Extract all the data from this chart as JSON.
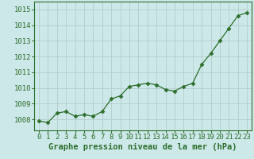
{
  "x": [
    0,
    1,
    2,
    3,
    4,
    5,
    6,
    7,
    8,
    9,
    10,
    11,
    12,
    13,
    14,
    15,
    16,
    17,
    18,
    19,
    20,
    21,
    22,
    23
  ],
  "y": [
    1007.9,
    1007.8,
    1008.4,
    1008.5,
    1008.2,
    1008.3,
    1008.2,
    1008.5,
    1009.3,
    1009.5,
    1010.1,
    1010.2,
    1010.3,
    1010.2,
    1009.9,
    1009.8,
    1010.1,
    1010.3,
    1011.5,
    1012.2,
    1013.0,
    1013.8,
    1014.6,
    1014.8
  ],
  "line_color": "#2d6e2d",
  "marker": "D",
  "marker_size": 2.5,
  "bg_color": "#cce8e8",
  "grid_color": "#b8d0d0",
  "xlabel": "Graphe pression niveau de la mer (hPa)",
  "xlabel_fontsize": 7.5,
  "ylabel_ticks": [
    1008,
    1009,
    1010,
    1011,
    1012,
    1013,
    1014,
    1015
  ],
  "ylim": [
    1007.3,
    1015.5
  ],
  "xlim": [
    -0.5,
    23.5
  ],
  "tick_fontsize": 6.5,
  "title_color": "#2d6e2d",
  "axis_color": "#2d6e2d"
}
